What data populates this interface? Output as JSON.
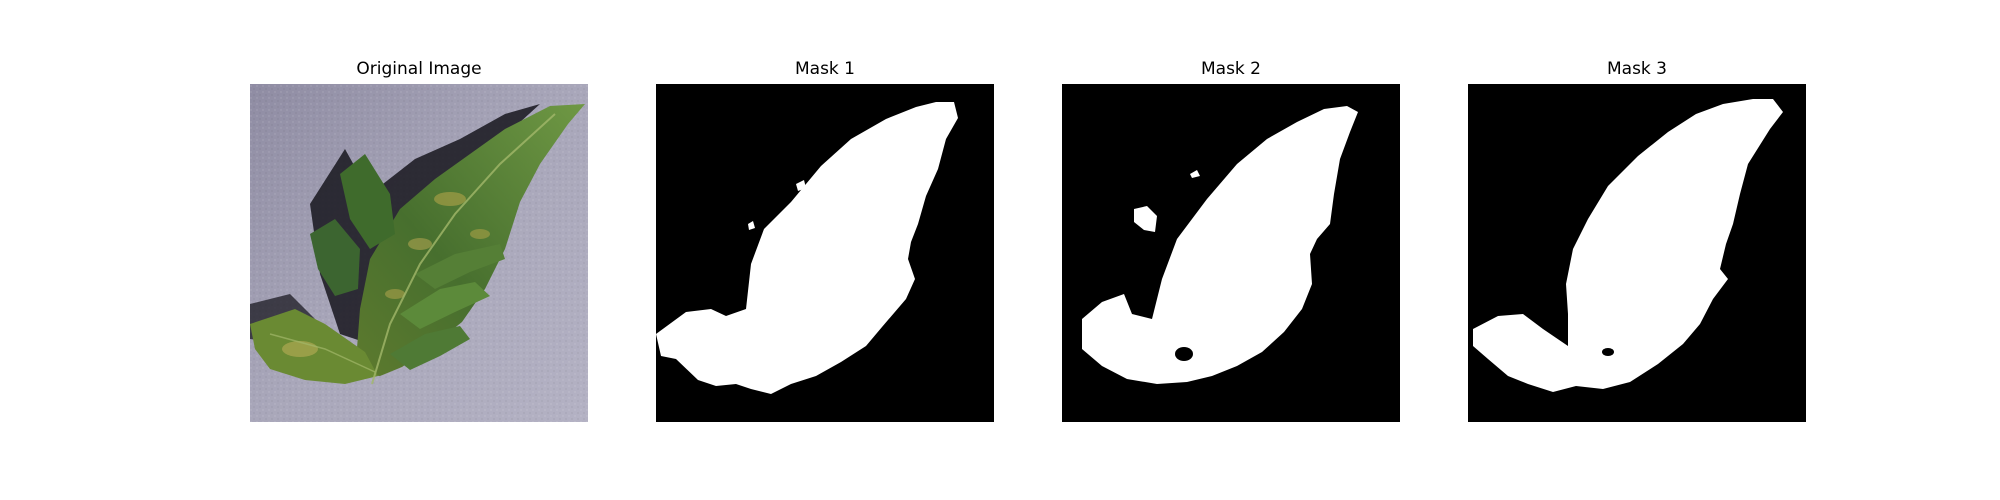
{
  "figure": {
    "panels": [
      {
        "title": "Original Image"
      },
      {
        "title": "Mask 1"
      },
      {
        "title": "Mask 2"
      },
      {
        "title": "Mask 3"
      }
    ]
  },
  "colors": {
    "background": "#ffffff",
    "mask_background": "#000000",
    "mask_foreground": "#ffffff",
    "leaf_dark": "#3f6b2c",
    "leaf_light": "#7da04a",
    "leaf_yellow": "#b9a84a",
    "surface": "#9e9cb0",
    "shadow": "#1b1a22"
  }
}
